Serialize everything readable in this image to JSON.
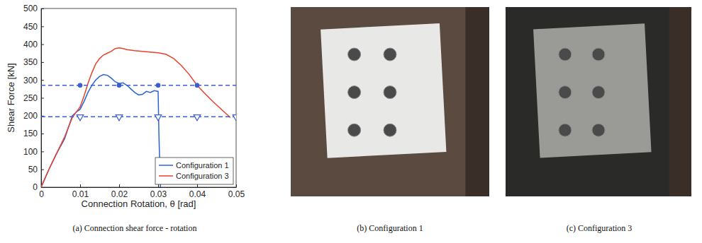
{
  "chart_data": {
    "type": "line",
    "x_label": "Connection Rotation, θ [rad]",
    "y_label": "Shear Force [kN]",
    "xlim": [
      0,
      0.05
    ],
    "xticks": [
      0,
      0.01,
      0.02,
      0.03,
      0.04,
      0.05
    ],
    "ylim": [
      0,
      500
    ],
    "yticks": [
      0,
      50,
      100,
      150,
      200,
      250,
      300,
      350,
      400,
      450,
      500
    ],
    "grid": false,
    "legend": "lower right",
    "series": [
      {
        "name": "Configuration 1",
        "color": "#2a63d8",
        "line_style": "solid",
        "marker": "none",
        "x": [
          0,
          0.002,
          0.004,
          0.006,
          0.008,
          0.009,
          0.01,
          0.011,
          0.012,
          0.013,
          0.014,
          0.015,
          0.016,
          0.017,
          0.018,
          0.019,
          0.02,
          0.021,
          0.022,
          0.023,
          0.024,
          0.025,
          0.026,
          0.027,
          0.028,
          0.029,
          0.03,
          0.0302,
          0.0304,
          0.0306
        ],
        "values": [
          0,
          50,
          95,
          135,
          200,
          210,
          218,
          240,
          265,
          285,
          300,
          310,
          315,
          313,
          305,
          295,
          290,
          292,
          285,
          275,
          265,
          258,
          260,
          268,
          265,
          270,
          268,
          150,
          70,
          0
        ]
      },
      {
        "name": "Configuration 3",
        "color": "#e8412c",
        "line_style": "solid",
        "marker": "none",
        "x": [
          0,
          0.002,
          0.004,
          0.006,
          0.008,
          0.01,
          0.011,
          0.012,
          0.013,
          0.014,
          0.015,
          0.016,
          0.017,
          0.018,
          0.019,
          0.02,
          0.021,
          0.022,
          0.024,
          0.026,
          0.028,
          0.03,
          0.032,
          0.034,
          0.036,
          0.038,
          0.04,
          0.042,
          0.044,
          0.046,
          0.048,
          0.0485
        ],
        "values": [
          0,
          50,
          95,
          140,
          195,
          225,
          255,
          290,
          320,
          345,
          360,
          370,
          375,
          380,
          388,
          390,
          388,
          385,
          382,
          380,
          378,
          376,
          372,
          360,
          340,
          315,
          285,
          262,
          240,
          220,
          200,
          195
        ]
      },
      {
        "color": "#3b5fd0",
        "line_style": "dashed",
        "marker": "none",
        "x": [
          0,
          0.05
        ],
        "values": [
          285,
          285
        ]
      },
      {
        "color": "#3b5fd0",
        "line_style": "none",
        "marker": "circle",
        "x": [
          0.01,
          0.02,
          0.03,
          0.04
        ],
        "values": [
          285,
          285,
          285,
          285
        ]
      },
      {
        "color": "#3b5fd0",
        "line_style": "dashed",
        "marker": "none",
        "x": [
          0,
          0.05
        ],
        "values": [
          197,
          197
        ]
      },
      {
        "color": "#3b5fd0",
        "line_style": "none",
        "marker": "triangle-down",
        "x": [
          0.01,
          0.02,
          0.03,
          0.04,
          0.05
        ],
        "values": [
          197,
          197,
          197,
          197,
          197
        ]
      }
    ]
  },
  "captions": [
    "(a) Connection shear force - rotation",
    "(b) Configuration 1",
    "(c) Configuration 3"
  ]
}
